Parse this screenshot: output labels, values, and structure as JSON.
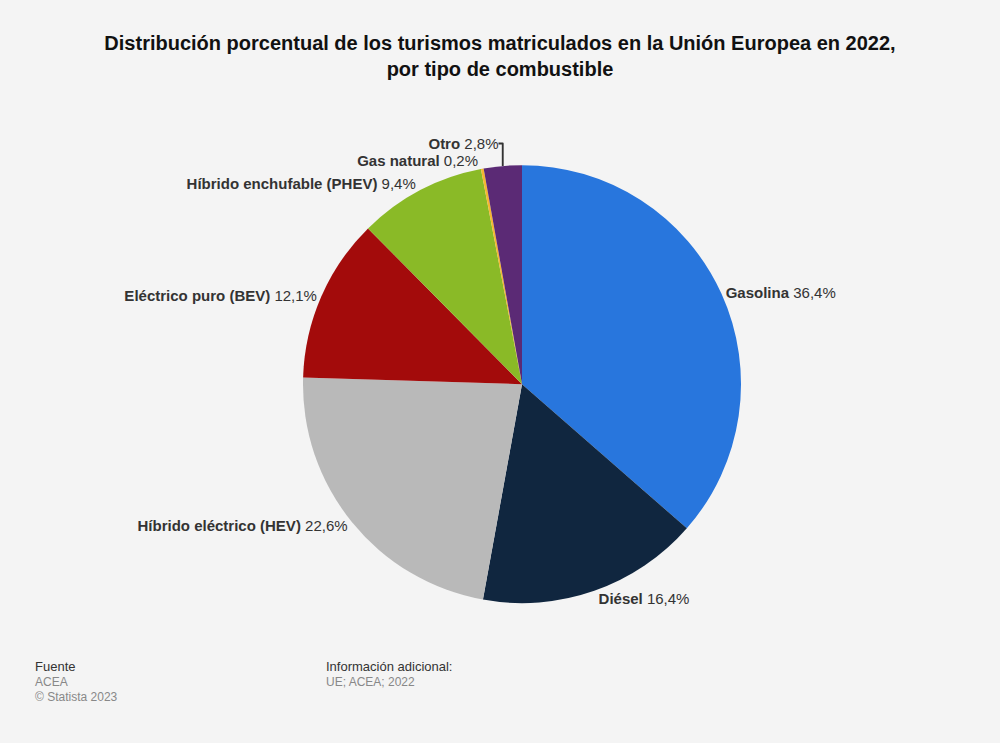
{
  "chart_data": {
    "type": "pie",
    "title": "Distribución porcentual de los turismos matriculados en la Unión Europea en 2022, por tipo de combustible",
    "categories": [
      "Gasolina",
      "Diésel",
      "Híbrido eléctrico (HEV)",
      "Eléctrico puro (BEV)",
      "Híbrido enchufable (PHEV)",
      "Gas natural",
      "Otro"
    ],
    "values": [
      36.4,
      16.4,
      22.6,
      12.1,
      9.4,
      0.2,
      2.8
    ],
    "value_labels": [
      "36,4%",
      "16,4%",
      "22,6%",
      "12,1%",
      "9,4%",
      "0,2%",
      "2,8%"
    ],
    "colors": [
      "#2876dd",
      "#10263f",
      "#b9b9b9",
      "#a30b0b",
      "#8aba27",
      "#f5b731",
      "#5b2a75"
    ],
    "data_labels": true,
    "annotations": [
      {
        "title": "Fuente",
        "text": [
          "ACEA",
          "© Statista 2023"
        ]
      },
      {
        "title": "Información adicional:",
        "text": [
          "UE; ACEA; 2022"
        ]
      }
    ]
  }
}
